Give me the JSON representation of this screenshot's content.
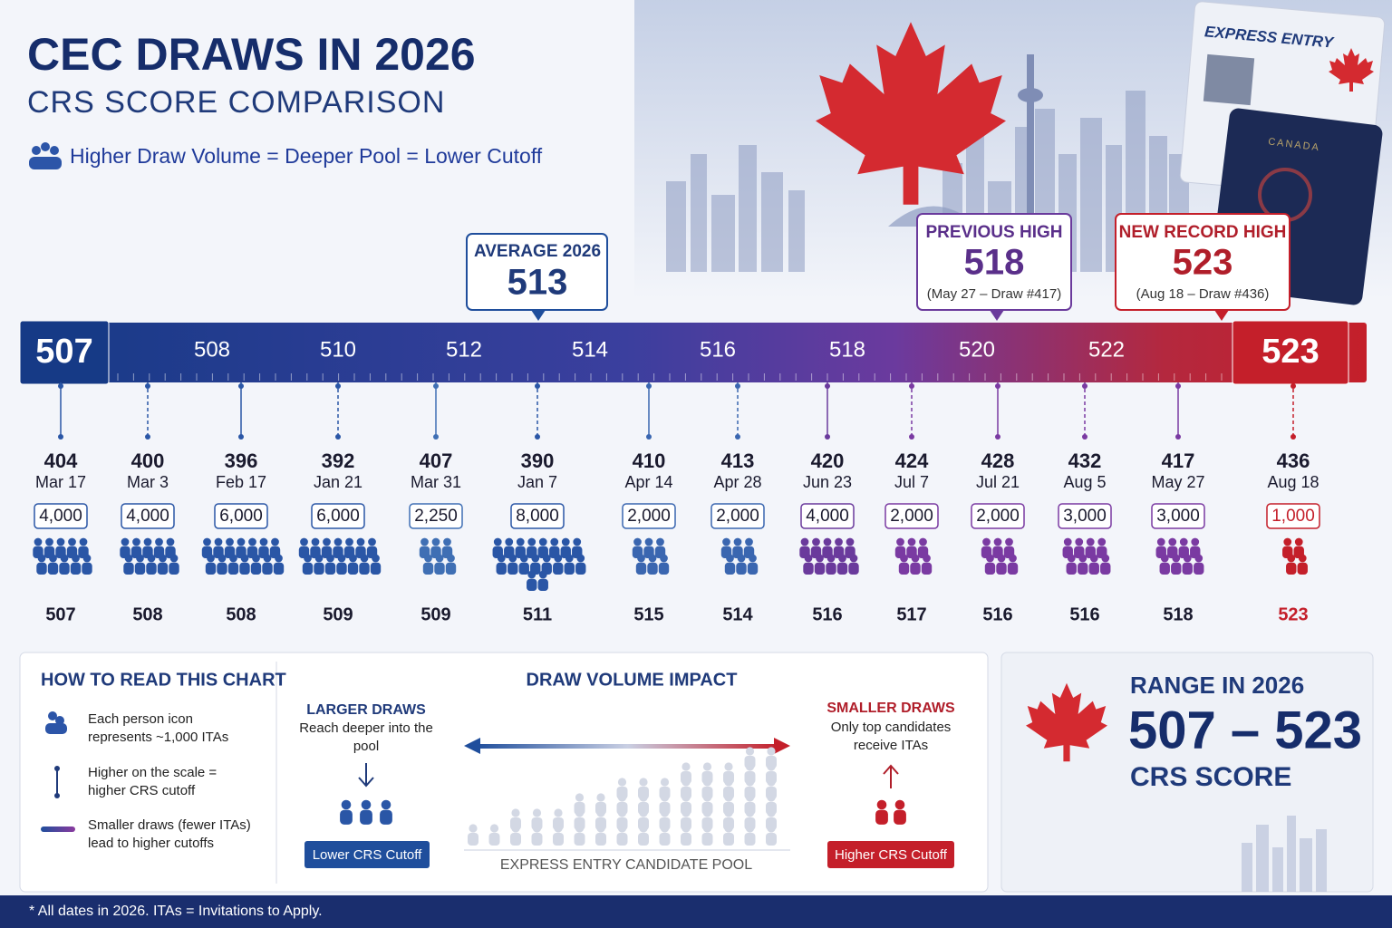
{
  "header": {
    "title": "CEC DRAWS IN 2026",
    "subtitle": "CRS SCORE COMPARISON",
    "tagline": "Higher Draw Volume = Deeper Pool = Lower Cutoff"
  },
  "badge": {
    "card": "EXPRESS ENTRY",
    "passport": "CANADA"
  },
  "scale": {
    "start": "507",
    "ticks": [
      "508",
      "510",
      "512",
      "514",
      "516",
      "518",
      "520",
      "522"
    ],
    "end": "523"
  },
  "callouts": {
    "average": {
      "label": "AVERAGE 2026",
      "value": "513"
    },
    "previous": {
      "label": "PREVIOUS HIGH",
      "value": "518",
      "note": "(May 27 – Draw #417)"
    },
    "record": {
      "label": "NEW RECORD HIGH",
      "value": "523",
      "note": "(Aug 18 – Draw #436)"
    }
  },
  "draws": [
    {
      "draw": "404",
      "date": "Mar 17",
      "itas": "4,000",
      "score": "507"
    },
    {
      "draw": "400",
      "date": "Mar 3",
      "itas": "4,000",
      "score": "508"
    },
    {
      "draw": "396",
      "date": "Feb 17",
      "itas": "6,000",
      "score": "508"
    },
    {
      "draw": "392",
      "date": "Jan 21",
      "itas": "6,000",
      "score": "509"
    },
    {
      "draw": "407",
      "date": "Mar 31",
      "itas": "2,250",
      "score": "509"
    },
    {
      "draw": "390",
      "date": "Jan 7",
      "itas": "8,000",
      "score": "511"
    },
    {
      "draw": "410",
      "date": "Apr 14",
      "itas": "2,000",
      "score": "515"
    },
    {
      "draw": "413",
      "date": "Apr 28",
      "itas": "2,000",
      "score": "514"
    },
    {
      "draw": "420",
      "date": "Jun 23",
      "itas": "4,000",
      "score": "516"
    },
    {
      "draw": "424",
      "date": "Jul 7",
      "itas": "2,000",
      "score": "517"
    },
    {
      "draw": "428",
      "date": "Jul 21",
      "itas": "2,000",
      "score": "516"
    },
    {
      "draw": "432",
      "date": "Aug 5",
      "itas": "3,000",
      "score": "516"
    },
    {
      "draw": "417",
      "date": "May 27",
      "itas": "3,000",
      "score": "518"
    },
    {
      "draw": "436",
      "date": "Aug 18",
      "itas": "1,000",
      "score": "523"
    }
  ],
  "legend": {
    "title": "HOW TO READ THIS CHART",
    "items": [
      [
        "Each person icon",
        "represents ~1,000 ITAs"
      ],
      [
        "Higher on the scale =",
        "higher CRS cutoff"
      ],
      [
        "Smaller draws (fewer ITAs)",
        "lead to higher cutoffs"
      ]
    ]
  },
  "impact": {
    "title": "DRAW VOLUME IMPACT",
    "larger": {
      "title": "LARGER DRAWS",
      "text": [
        "Reach deeper into the",
        "pool"
      ],
      "button": "Lower CRS Cutoff"
    },
    "smaller": {
      "title": "SMALLER DRAWS",
      "text": [
        "Only top candidates",
        "receive ITAs"
      ],
      "button": "Higher CRS Cutoff"
    },
    "pool": "EXPRESS ENTRY CANDIDATE POOL"
  },
  "range": {
    "title": "RANGE IN 2026",
    "value": "507 – 523",
    "unit": "CRS SCORE"
  },
  "footer": "* All dates in 2026. ITAs = Invitations to Apply."
}
